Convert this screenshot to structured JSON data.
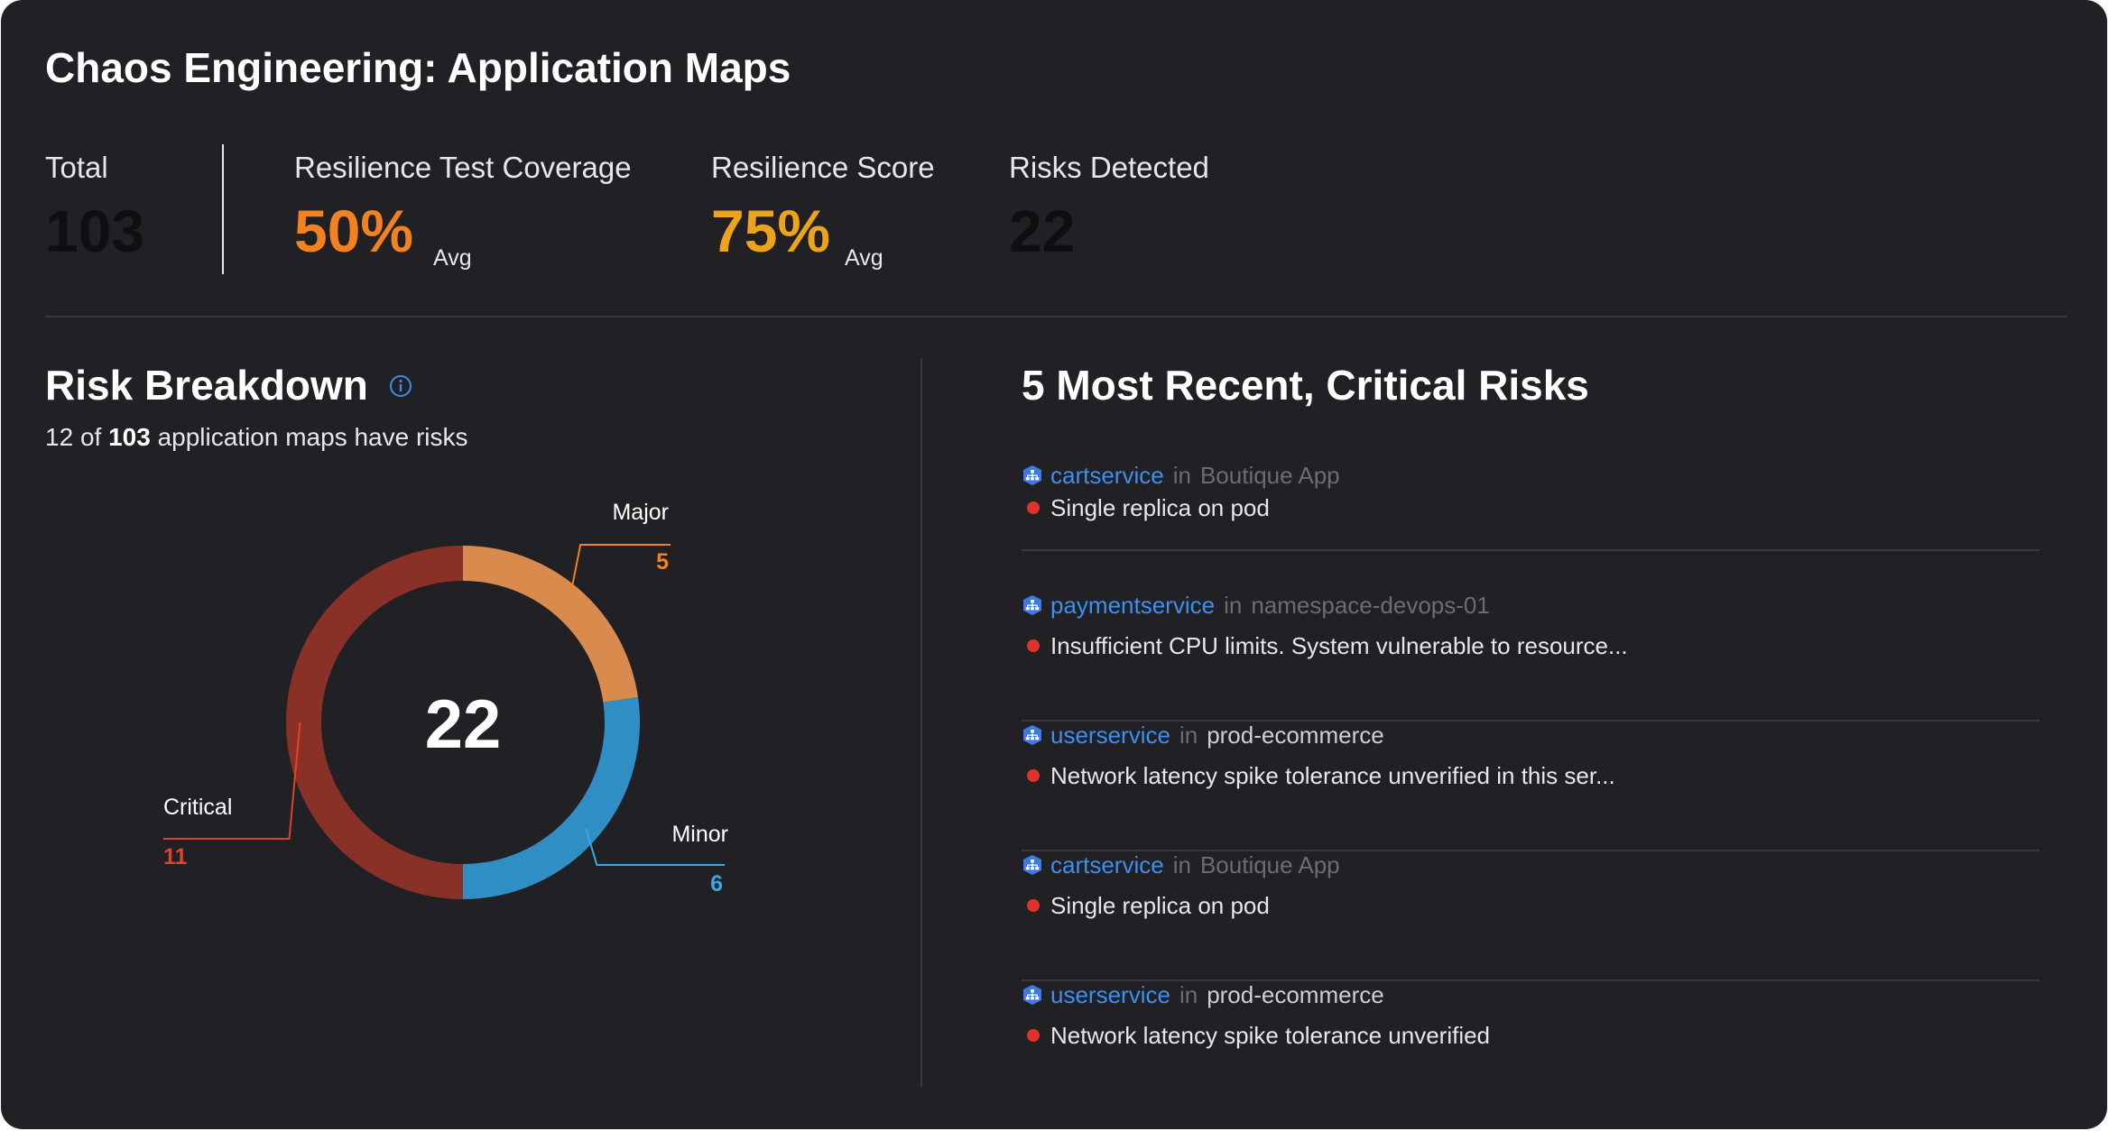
{
  "title": "Chaos Engineering: Application Maps",
  "kpis": {
    "total": {
      "label": "Total",
      "value": "103"
    },
    "coverage": {
      "label": "Resilience Test Coverage",
      "value": "50%",
      "suffix": "Avg"
    },
    "score": {
      "label": "Resilience Score",
      "value": "75%",
      "suffix": "Avg"
    },
    "risks": {
      "label": "Risks Detected",
      "value": "22"
    }
  },
  "colors": {
    "coverage": "#f28221",
    "score": "#eca41d",
    "muted_value": "#0f0f11",
    "major": "#d88b4c",
    "minor": "#2f8fc4",
    "critical": "#8a3127",
    "link": "#3d8ff0",
    "risk_dot": "#e0322b"
  },
  "breakdown": {
    "title": "Risk Breakdown",
    "info_icon": "info-icon",
    "subtitle_count": "12",
    "subtitle_of": "of",
    "subtitle_total": "103",
    "subtitle_rest": "application maps have risks",
    "total": "22"
  },
  "chart_data": {
    "type": "pie",
    "donut": true,
    "center_label": "22",
    "title": "",
    "slices": [
      {
        "label": "Major",
        "value": 5,
        "color": "#d88b4c",
        "label_color": "#f28221"
      },
      {
        "label": "Minor",
        "value": 6,
        "color": "#2f8fc4",
        "label_color": "#3aa8e8"
      },
      {
        "label": "Critical",
        "value": 11,
        "color": "#8a3127",
        "label_color": "#e0422b"
      }
    ]
  },
  "recent": {
    "title": "5 Most Recent, Critical Risks",
    "items": [
      {
        "service": "cartservice",
        "in": "in",
        "namespace": "Boutique App",
        "risk": "Single replica on pod",
        "icon": "service-icon"
      },
      {
        "service": "paymentservice",
        "in": "in",
        "namespace": "namespace-devops-01",
        "risk": "Insufficient CPU limits. System vulnerable to resource...",
        "icon": "service-icon"
      },
      {
        "service": "userservice",
        "in": "in",
        "namespace": "prod-ecommerce",
        "risk": "Network latency spike tolerance unverified in this ser...",
        "icon": "service-icon"
      },
      {
        "service": "cartservice",
        "in": "in",
        "namespace": "Boutique App",
        "risk": "Single replica on pod",
        "icon": "service-icon"
      },
      {
        "service": "userservice",
        "in": "in",
        "namespace": "prod-ecommerce",
        "risk": "Network latency spike tolerance unverified",
        "icon": "service-icon"
      }
    ]
  }
}
